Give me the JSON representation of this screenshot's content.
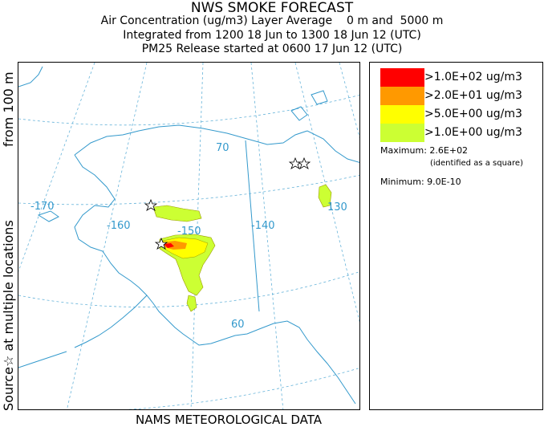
{
  "header": {
    "title": "NWS SMOKE FORECAST",
    "line2": "Air Concentration (ug/m3) Layer Average    0 m and  5000 m",
    "line3": "Integrated from 1200 18 Jun to 1300 18 Jun 12 (UTC)",
    "line4": "PM25 Release started at 0600 17 Jun 12 (UTC)"
  },
  "side_label_left": "Source☆ at multiple locations",
  "side_label_right": "from   100 m",
  "map": {
    "graticule_labels": [
      "-170",
      "-160",
      "-150",
      "-140",
      "130",
      "70",
      "60"
    ],
    "colors": {
      "coast": "#3399cc",
      "grid": "#66b3d9"
    }
  },
  "legend": {
    "entries": [
      {
        "label": ">1.0E+02 ug/m3",
        "color": "#ff0000"
      },
      {
        "label": ">2.0E+01 ug/m3",
        "color": "#ff9900"
      },
      {
        "label": ">5.0E+00 ug/m3",
        "color": "#ffff00"
      },
      {
        "label": ">1.0E+00 ug/m3",
        "color": "#ccff33"
      }
    ],
    "maximum": "Maximum: 2.6E+02",
    "maximum_note": "(identified as a square)",
    "minimum": "Minimum: 9.0E-10"
  },
  "footer": "NAMS METEOROLOGICAL DATA"
}
